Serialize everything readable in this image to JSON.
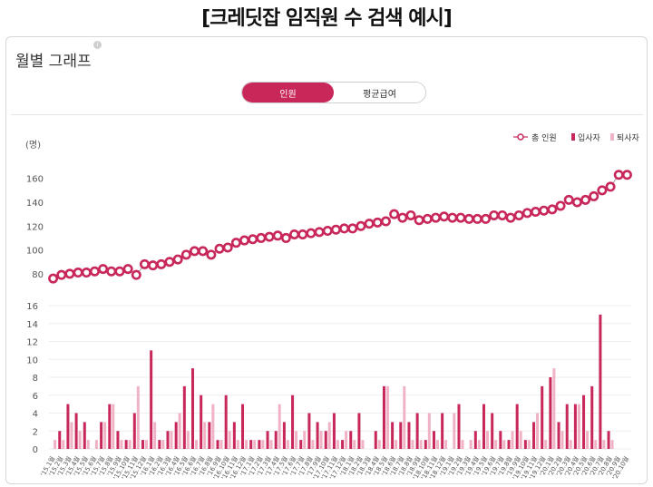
{
  "page_title": "[크레딧잡 임직원 수 검색 예시]",
  "panel": {
    "title": "월별 그래프",
    "info_icon": "info-icon"
  },
  "toggle": {
    "options": [
      "인원",
      "평균급여"
    ],
    "selected": "인원"
  },
  "colors": {
    "accent": "#c8275a",
    "total_line": "#c8275a",
    "hires": "#c8275a",
    "leavers": "#f0b3c6",
    "grid": "#eeeeee"
  },
  "chart_data": [
    {
      "type": "line",
      "title": "총 인원",
      "ylabel": "(명)",
      "ylim": [
        70,
        175
      ],
      "yticks": [
        80,
        100,
        120,
        140,
        160
      ],
      "legend": {
        "placement": "top-right",
        "entries": [
          "총 인원",
          "입사자",
          "퇴사자"
        ]
      },
      "series": [
        {
          "name": "총 인원",
          "values": [
            76,
            79,
            80,
            81,
            81,
            82,
            84,
            82,
            82,
            84,
            79,
            88,
            87,
            88,
            90,
            92,
            96,
            99,
            99,
            96,
            101,
            102,
            106,
            108,
            109,
            110,
            111,
            112,
            110,
            113,
            113,
            114,
            115,
            116,
            117,
            118,
            118,
            120,
            122,
            123,
            124,
            130,
            127,
            129,
            125,
            126,
            127,
            128,
            127,
            127,
            126,
            126,
            126,
            129,
            129,
            127,
            129,
            131,
            132,
            133,
            134,
            137,
            142,
            140,
            142,
            145,
            150,
            153,
            163,
            163
          ]
        }
      ]
    },
    {
      "type": "bar",
      "title": "입사자 / 퇴사자",
      "ylim": [
        0,
        16
      ],
      "yticks": [
        0,
        2,
        4,
        6,
        8,
        10,
        12,
        14,
        16
      ],
      "categories": [
        "'15.1월",
        "'15.2월",
        "'15.3월",
        "'15.4월",
        "'15.5월",
        "'15.6월",
        "'15.7월",
        "'15.8월",
        "'15.9월",
        "'15.10월",
        "'15.11월",
        "'15.12월",
        "'16.1월",
        "'16.2월",
        "'16.3월",
        "'16.4월",
        "'16.5월",
        "'16.6월",
        "'16.7월",
        "'16.8월",
        "'16.9월",
        "'16.10월",
        "'16.11월",
        "'16.12월",
        "'17.1월",
        "'17.2월",
        "'17.3월",
        "'17.4월",
        "'17.5월",
        "'17.6월",
        "'17.7월",
        "'17.8월",
        "'17.9월",
        "'17.10월",
        "'17.11월",
        "'17.12월",
        "'18.1월",
        "'18.2월",
        "'18.3월",
        "'18.4월",
        "'18.5월",
        "'18.6월",
        "'18.7월",
        "'18.8월",
        "'18.9월",
        "'18.10월",
        "'18.11월",
        "'18.12월",
        "'19.1월",
        "'19.2월",
        "'19.3월",
        "'19.4월",
        "'19.5월",
        "'19.6월",
        "'19.7월",
        "'19.8월",
        "'19.9월",
        "'19.10월",
        "'19.11월",
        "'19.12월",
        "'20.1월",
        "'20.2월",
        "'20.3월",
        "'20.4월",
        "'20.5월",
        "'20.6월",
        "'20.7월",
        "'20.8월",
        "'20.9월",
        "'20.10월"
      ],
      "series": [
        {
          "name": "입사자",
          "values": [
            0,
            2,
            5,
            4,
            3,
            0,
            3,
            5,
            2,
            1,
            4,
            1,
            11,
            1,
            2,
            3,
            7,
            9,
            6,
            3,
            1,
            6,
            3,
            5,
            1,
            1,
            2,
            2,
            3,
            6,
            1,
            4,
            3,
            2,
            4,
            1,
            2,
            4,
            0,
            2,
            7,
            3,
            3,
            3,
            4,
            1,
            2,
            4,
            0,
            5,
            0,
            2,
            5,
            4,
            2,
            1,
            5,
            1,
            3,
            7,
            8,
            3,
            5,
            5,
            6,
            7,
            15,
            2,
            0,
            0
          ]
        },
        {
          "name": "퇴사자",
          "values": [
            1,
            1,
            3,
            2,
            1,
            1,
            3,
            5,
            1,
            1,
            7,
            1,
            3,
            1,
            2,
            4,
            2,
            1,
            3,
            5,
            1,
            2,
            1,
            1,
            1,
            1,
            1,
            5,
            1,
            2,
            2,
            1,
            2,
            3,
            1,
            2,
            1,
            1,
            0,
            1,
            7,
            1,
            7,
            1,
            1,
            4,
            1,
            1,
            4,
            1,
            1,
            1,
            2,
            1,
            1,
            2,
            2,
            1,
            4,
            1,
            9,
            2,
            1,
            5,
            2,
            1,
            1,
            1,
            0,
            0
          ]
        }
      ]
    }
  ]
}
